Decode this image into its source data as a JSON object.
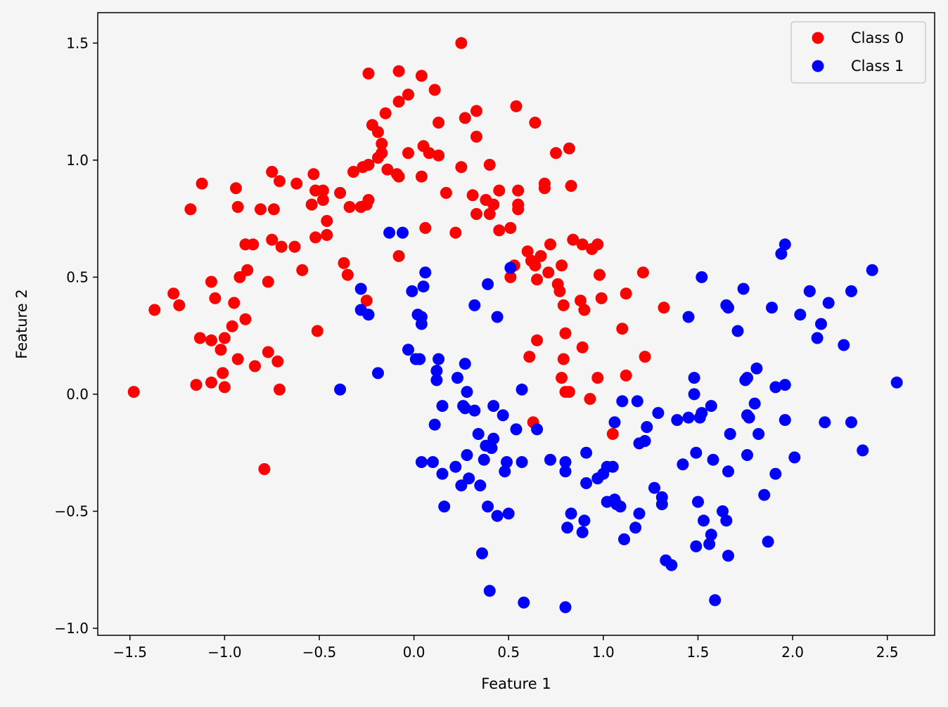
{
  "chart_data": {
    "type": "scatter",
    "xlabel": "Feature 1",
    "ylabel": "Feature 2",
    "xlim": [
      -1.67,
      2.75
    ],
    "ylim": [
      -1.03,
      1.63
    ],
    "xticks": [
      -1.5,
      -1.0,
      -0.5,
      0.0,
      0.5,
      1.0,
      1.5,
      2.0,
      2.5
    ],
    "xtick_labels": [
      "−1.5",
      "−1.0",
      "−0.5",
      "0.0",
      "0.5",
      "1.0",
      "1.5",
      "2.0",
      "2.5"
    ],
    "yticks": [
      -1.0,
      -0.5,
      0.0,
      0.5,
      1.0,
      1.5
    ],
    "ytick_labels": [
      "−1.0",
      "−0.5",
      "0.0",
      "0.5",
      "1.0",
      "1.5"
    ],
    "grid": false,
    "legend_position": "top-right",
    "series": [
      {
        "name": "Class 0",
        "color": "#ff0000",
        "points": [
          [
            -1.48,
            0.01
          ],
          [
            -1.37,
            0.36
          ],
          [
            -1.27,
            0.43
          ],
          [
            -1.24,
            0.38
          ],
          [
            -1.18,
            0.79
          ],
          [
            -1.15,
            0.04
          ],
          [
            -1.13,
            0.24
          ],
          [
            -1.12,
            0.9
          ],
          [
            -1.07,
            0.48
          ],
          [
            -1.07,
            0.23
          ],
          [
            -1.07,
            0.05
          ],
          [
            -1.05,
            0.41
          ],
          [
            -1.02,
            0.19
          ],
          [
            -1.01,
            0.09
          ],
          [
            -1.0,
            0.03
          ],
          [
            -1.0,
            0.24
          ],
          [
            -0.96,
            0.29
          ],
          [
            -0.95,
            0.39
          ],
          [
            -0.94,
            0.88
          ],
          [
            -0.93,
            0.8
          ],
          [
            -0.93,
            0.15
          ],
          [
            -0.92,
            0.5
          ],
          [
            -0.89,
            0.64
          ],
          [
            -0.89,
            0.32
          ],
          [
            -0.88,
            0.53
          ],
          [
            -0.85,
            0.64
          ],
          [
            -0.84,
            0.12
          ],
          [
            -0.81,
            0.79
          ],
          [
            -0.79,
            -0.32
          ],
          [
            -0.77,
            0.18
          ],
          [
            -0.77,
            0.48
          ],
          [
            -0.75,
            0.95
          ],
          [
            -0.75,
            0.66
          ],
          [
            -0.74,
            0.79
          ],
          [
            -0.72,
            0.14
          ],
          [
            -0.71,
            0.02
          ],
          [
            -0.71,
            0.91
          ],
          [
            -0.7,
            0.63
          ],
          [
            -0.63,
            0.63
          ],
          [
            -0.62,
            0.9
          ],
          [
            -0.59,
            0.53
          ],
          [
            -0.54,
            0.81
          ],
          [
            -0.53,
            0.94
          ],
          [
            -0.52,
            0.67
          ],
          [
            -0.52,
            0.87
          ],
          [
            -0.51,
            0.27
          ],
          [
            -0.48,
            0.87
          ],
          [
            -0.48,
            0.83
          ],
          [
            -0.46,
            0.74
          ],
          [
            -0.46,
            0.68
          ],
          [
            -0.39,
            0.86
          ],
          [
            -0.37,
            0.56
          ],
          [
            -0.35,
            0.51
          ],
          [
            -0.34,
            0.8
          ],
          [
            -0.32,
            0.95
          ],
          [
            -0.28,
            0.8
          ],
          [
            -0.27,
            0.97
          ],
          [
            -0.25,
            0.81
          ],
          [
            -0.25,
            0.4
          ],
          [
            -0.24,
            0.98
          ],
          [
            -0.24,
            0.83
          ],
          [
            -0.24,
            1.37
          ],
          [
            -0.22,
            1.15
          ],
          [
            -0.19,
            1.12
          ],
          [
            -0.19,
            1.01
          ],
          [
            -0.17,
            1.07
          ],
          [
            -0.17,
            1.03
          ],
          [
            -0.15,
            1.2
          ],
          [
            -0.14,
            0.96
          ],
          [
            -0.09,
            0.94
          ],
          [
            -0.08,
            0.93
          ],
          [
            -0.08,
            1.38
          ],
          [
            -0.08,
            1.25
          ],
          [
            -0.08,
            0.59
          ],
          [
            -0.03,
            1.28
          ],
          [
            -0.03,
            1.03
          ],
          [
            0.04,
            1.36
          ],
          [
            0.04,
            0.93
          ],
          [
            0.05,
            1.06
          ],
          [
            0.06,
            0.71
          ],
          [
            0.08,
            1.03
          ],
          [
            0.11,
            1.3
          ],
          [
            0.13,
            1.02
          ],
          [
            0.13,
            1.16
          ],
          [
            0.17,
            0.86
          ],
          [
            0.22,
            0.69
          ],
          [
            0.25,
            1.5
          ],
          [
            0.25,
            0.97
          ],
          [
            0.27,
            1.18
          ],
          [
            0.31,
            0.85
          ],
          [
            0.33,
            0.77
          ],
          [
            0.33,
            1.21
          ],
          [
            0.33,
            1.1
          ],
          [
            0.38,
            0.83
          ],
          [
            0.4,
            0.98
          ],
          [
            0.4,
            0.77
          ],
          [
            0.42,
            0.81
          ],
          [
            0.45,
            0.7
          ],
          [
            0.45,
            0.87
          ],
          [
            0.51,
            0.5
          ],
          [
            0.51,
            0.71
          ],
          [
            0.53,
            0.55
          ],
          [
            0.54,
            1.23
          ],
          [
            0.55,
            0.87
          ],
          [
            0.55,
            0.79
          ],
          [
            0.55,
            0.81
          ],
          [
            0.6,
            0.61
          ],
          [
            0.61,
            0.16
          ],
          [
            0.62,
            0.57
          ],
          [
            0.63,
            -0.12
          ],
          [
            0.64,
            1.16
          ],
          [
            0.64,
            0.55
          ],
          [
            0.65,
            0.49
          ],
          [
            0.65,
            0.23
          ],
          [
            0.67,
            0.59
          ],
          [
            0.69,
            0.9
          ],
          [
            0.69,
            0.88
          ],
          [
            0.71,
            0.52
          ],
          [
            0.72,
            0.64
          ],
          [
            0.75,
            1.03
          ],
          [
            0.76,
            0.47
          ],
          [
            0.77,
            0.44
          ],
          [
            0.78,
            0.55
          ],
          [
            0.78,
            0.07
          ],
          [
            0.79,
            0.15
          ],
          [
            0.79,
            0.38
          ],
          [
            0.8,
            0.26
          ],
          [
            0.8,
            0.01
          ],
          [
            0.82,
            1.05
          ],
          [
            0.82,
            0.01
          ],
          [
            0.83,
            0.89
          ],
          [
            0.84,
            0.66
          ],
          [
            0.88,
            0.4
          ],
          [
            0.89,
            0.64
          ],
          [
            0.89,
            0.2
          ],
          [
            0.9,
            0.36
          ],
          [
            0.93,
            -0.02
          ],
          [
            0.94,
            0.62
          ],
          [
            0.97,
            0.64
          ],
          [
            0.97,
            0.07
          ],
          [
            0.98,
            0.51
          ],
          [
            0.99,
            0.41
          ],
          [
            1.05,
            -0.17
          ],
          [
            1.1,
            0.28
          ],
          [
            1.12,
            0.43
          ],
          [
            1.12,
            0.08
          ],
          [
            1.21,
            0.52
          ],
          [
            1.22,
            0.16
          ],
          [
            1.32,
            0.37
          ]
        ]
      },
      {
        "name": "Class 1",
        "color": "#0000ff",
        "points": [
          [
            -0.39,
            0.02
          ],
          [
            -0.28,
            0.45
          ],
          [
            -0.28,
            0.36
          ],
          [
            -0.24,
            0.34
          ],
          [
            -0.19,
            0.09
          ],
          [
            -0.13,
            0.69
          ],
          [
            -0.06,
            0.69
          ],
          [
            -0.03,
            0.19
          ],
          [
            -0.01,
            0.44
          ],
          [
            0.01,
            0.15
          ],
          [
            0.02,
            0.34
          ],
          [
            0.03,
            0.15
          ],
          [
            0.04,
            0.33
          ],
          [
            0.04,
            0.3
          ],
          [
            0.04,
            -0.29
          ],
          [
            0.05,
            0.46
          ],
          [
            0.06,
            0.52
          ],
          [
            0.1,
            -0.29
          ],
          [
            0.11,
            -0.13
          ],
          [
            0.12,
            0.1
          ],
          [
            0.12,
            0.06
          ],
          [
            0.13,
            0.15
          ],
          [
            0.15,
            -0.05
          ],
          [
            0.15,
            -0.34
          ],
          [
            0.16,
            -0.48
          ],
          [
            0.22,
            -0.31
          ],
          [
            0.23,
            0.07
          ],
          [
            0.25,
            -0.39
          ],
          [
            0.26,
            -0.05
          ],
          [
            0.27,
            0.13
          ],
          [
            0.27,
            -0.06
          ],
          [
            0.28,
            0.01
          ],
          [
            0.28,
            -0.26
          ],
          [
            0.29,
            -0.36
          ],
          [
            0.32,
            0.38
          ],
          [
            0.32,
            -0.07
          ],
          [
            0.34,
            -0.17
          ],
          [
            0.35,
            -0.39
          ],
          [
            0.36,
            -0.68
          ],
          [
            0.37,
            -0.28
          ],
          [
            0.38,
            -0.22
          ],
          [
            0.39,
            -0.48
          ],
          [
            0.39,
            0.47
          ],
          [
            0.4,
            -0.84
          ],
          [
            0.41,
            -0.23
          ],
          [
            0.42,
            -0.19
          ],
          [
            0.42,
            -0.05
          ],
          [
            0.44,
            -0.52
          ],
          [
            0.44,
            0.33
          ],
          [
            0.47,
            -0.09
          ],
          [
            0.48,
            -0.33
          ],
          [
            0.49,
            -0.29
          ],
          [
            0.5,
            -0.51
          ],
          [
            0.51,
            0.54
          ],
          [
            0.54,
            -0.15
          ],
          [
            0.57,
            -0.29
          ],
          [
            0.57,
            0.02
          ],
          [
            0.58,
            -0.89
          ],
          [
            0.65,
            -0.15
          ],
          [
            0.72,
            -0.28
          ],
          [
            0.8,
            -0.91
          ],
          [
            0.8,
            -0.33
          ],
          [
            0.8,
            -0.29
          ],
          [
            0.81,
            -0.57
          ],
          [
            0.83,
            -0.51
          ],
          [
            0.89,
            -0.59
          ],
          [
            0.9,
            -0.54
          ],
          [
            0.91,
            -0.38
          ],
          [
            0.91,
            -0.25
          ],
          [
            0.97,
            -0.36
          ],
          [
            1.0,
            -0.34
          ],
          [
            1.02,
            -0.46
          ],
          [
            1.02,
            -0.31
          ],
          [
            1.05,
            -0.31
          ],
          [
            1.06,
            -0.45
          ],
          [
            1.06,
            -0.12
          ],
          [
            1.07,
            -0.47
          ],
          [
            1.09,
            -0.48
          ],
          [
            1.1,
            -0.03
          ],
          [
            1.11,
            -0.62
          ],
          [
            1.17,
            -0.57
          ],
          [
            1.18,
            -0.03
          ],
          [
            1.19,
            -0.51
          ],
          [
            1.19,
            -0.21
          ],
          [
            1.22,
            -0.2
          ],
          [
            1.23,
            -0.14
          ],
          [
            1.27,
            -0.4
          ],
          [
            1.29,
            -0.08
          ],
          [
            1.31,
            -0.44
          ],
          [
            1.31,
            -0.47
          ],
          [
            1.33,
            -0.71
          ],
          [
            1.36,
            -0.73
          ],
          [
            1.39,
            -0.11
          ],
          [
            1.42,
            -0.3
          ],
          [
            1.45,
            -0.1
          ],
          [
            1.45,
            0.33
          ],
          [
            1.48,
            0.07
          ],
          [
            1.48,
            0.0
          ],
          [
            1.49,
            -0.25
          ],
          [
            1.49,
            -0.65
          ],
          [
            1.5,
            -0.46
          ],
          [
            1.51,
            -0.1
          ],
          [
            1.52,
            -0.08
          ],
          [
            1.52,
            0.5
          ],
          [
            1.53,
            -0.54
          ],
          [
            1.56,
            -0.64
          ],
          [
            1.57,
            -0.6
          ],
          [
            1.57,
            -0.05
          ],
          [
            1.58,
            -0.28
          ],
          [
            1.59,
            -0.88
          ],
          [
            1.63,
            -0.5
          ],
          [
            1.65,
            -0.54
          ],
          [
            1.65,
            0.38
          ],
          [
            1.66,
            0.37
          ],
          [
            1.66,
            -0.33
          ],
          [
            1.66,
            -0.69
          ],
          [
            1.67,
            -0.17
          ],
          [
            1.71,
            0.27
          ],
          [
            1.74,
            0.45
          ],
          [
            1.75,
            0.06
          ],
          [
            1.76,
            0.07
          ],
          [
            1.76,
            -0.26
          ],
          [
            1.76,
            -0.09
          ],
          [
            1.77,
            -0.1
          ],
          [
            1.8,
            -0.04
          ],
          [
            1.81,
            0.11
          ],
          [
            1.82,
            -0.17
          ],
          [
            1.85,
            -0.43
          ],
          [
            1.87,
            -0.63
          ],
          [
            1.89,
            0.37
          ],
          [
            1.91,
            -0.34
          ],
          [
            1.91,
            0.03
          ],
          [
            1.94,
            0.6
          ],
          [
            1.96,
            0.64
          ],
          [
            1.96,
            0.04
          ],
          [
            1.96,
            -0.11
          ],
          [
            2.01,
            -0.27
          ],
          [
            2.04,
            0.34
          ],
          [
            2.09,
            0.44
          ],
          [
            2.09,
            0.44
          ],
          [
            2.13,
            0.24
          ],
          [
            2.15,
            0.3
          ],
          [
            2.17,
            -0.12
          ],
          [
            2.19,
            0.39
          ],
          [
            2.27,
            0.21
          ],
          [
            2.31,
            0.44
          ],
          [
            2.31,
            -0.12
          ],
          [
            2.37,
            -0.24
          ],
          [
            2.42,
            0.53
          ],
          [
            2.55,
            0.05
          ]
        ]
      }
    ]
  }
}
